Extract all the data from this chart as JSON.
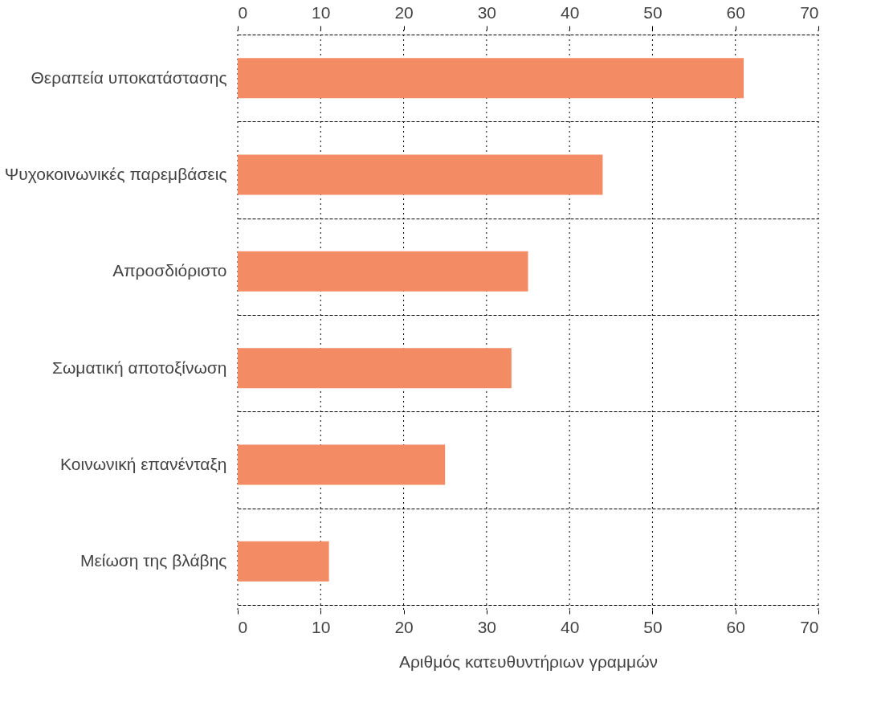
{
  "chart_data": {
    "type": "bar",
    "orientation": "horizontal",
    "xlabel": "Αριθμός κατευθυντήριων γραμμών",
    "categories": [
      "Θεραπεία υποκατάστασης",
      "Ψυχοκοινωνικές παρεμβάσεις",
      "Απροσδιόριστο",
      "Σωματική αποτοξίνωση",
      "Κοινωνική επανένταξη",
      "Μείωση της βλάβης"
    ],
    "values": [
      61,
      44,
      35,
      33,
      25,
      11
    ],
    "color": "#f38b64",
    "xlim": [
      0,
      70
    ],
    "xticks": [
      0,
      10,
      20,
      30,
      40,
      50,
      60,
      70
    ],
    "x2lim": [
      0,
      70
    ],
    "x2ticks": [
      0,
      10,
      20,
      30,
      40,
      50,
      60,
      70
    ],
    "grid": true
  }
}
